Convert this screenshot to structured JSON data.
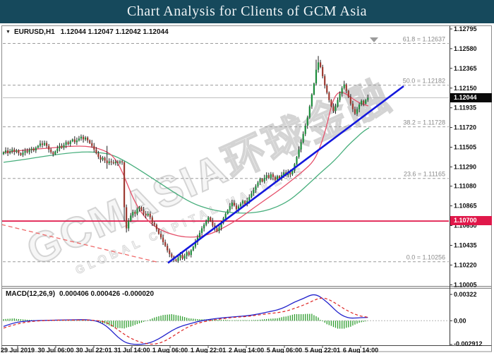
{
  "ui": {
    "title_bar": {
      "text": "Chart Analysis for Clients of GCM Asia",
      "bg_color": "#16495c"
    },
    "symbol_header": {
      "dropdown_icon": "▼",
      "symbol": "EURUSD,H1",
      "ohlc": "1.12044 1.12047 1.12042 1.12044"
    },
    "macd_label": {
      "name": "MACD(12,26,9)",
      "values": "0.000406 0.000426 -0.000020"
    },
    "badges": {
      "current_price": "1.12044",
      "current_bg": "#0a0a0a",
      "alert_price": "1.10700",
      "alert_bg": "#e0184a"
    },
    "watermark": {
      "main": "GCMASIA环球金融",
      "sub": "GLOBAL CAPITAL MARKETS"
    }
  },
  "chart_data": {
    "type": "candlestick",
    "symbol": "EURUSD",
    "timeframe": "H1",
    "current_ohlc": {
      "open": 1.12044,
      "high": 1.12047,
      "low": 1.12042,
      "close": 1.12044
    },
    "ylim": [
      1.10005,
      1.12795
    ],
    "y_ticks": [
      1.12795,
      1.1258,
      1.12365,
      1.1215,
      1.11935,
      1.1172,
      1.11505,
      1.1129,
      1.1108,
      1.10865,
      1.1065,
      1.10435,
      1.1022,
      1.10005
    ],
    "x_tick_labels": [
      "29 Jul 2019",
      "30 Jul 06:00",
      "30 Jul 22:01",
      "31 Jul 14:00",
      "1 Aug 06:00",
      "1 Aug 22:01",
      "2 Aug 14:00",
      "5 Aug 06:00",
      "5 Aug 22:01",
      "6 Aug 14:00"
    ],
    "current_price": 1.12044,
    "hline_red": 1.107,
    "fib_levels": [
      {
        "ratio": "61.8",
        "price": 1.12637,
        "label": "61.8 = 1.12637"
      },
      {
        "ratio": "50.0",
        "price": 1.12182,
        "label": "50.0 = 1.12182"
      },
      {
        "ratio": "38.2",
        "price": 1.11728,
        "label": "38.2 = 1.11728"
      },
      {
        "ratio": "23.6",
        "price": 1.11165,
        "label": "23.6 = 1.11165"
      },
      {
        "ratio": "0.0",
        "price": 1.10256,
        "label": "0.0 = 1.10256"
      }
    ],
    "trendline_blue": {
      "x1": 238,
      "price1": 1.10243,
      "x2": 572,
      "price2": 1.12171
    },
    "dashed_red_line": {
      "x1": 2,
      "price1": 1.10662,
      "x2": 222,
      "price2": 1.10253
    },
    "first_open": 1.1143,
    "candles_close": [
      1.1145,
      1.1147,
      1.1144,
      1.1146,
      1.1148,
      1.11455,
      1.1147,
      1.1144,
      1.1142,
      1.11445,
      1.11465,
      1.1145,
      1.11475,
      1.1149,
      1.1147,
      1.115,
      1.1152,
      1.11545,
      1.1153,
      1.1155,
      1.1152,
      1.1148,
      1.1145,
      1.1143,
      1.1146,
      1.1149,
      1.1152,
      1.115,
      1.1153,
      1.1156,
      1.1154,
      1.1157,
      1.1159,
      1.1156,
      1.1158,
      1.116,
      1.1162,
      1.1159,
      1.1161,
      1.1158,
      1.1155,
      1.1152,
      1.1148,
      1.1144,
      1.114,
      1.1137,
      1.1139,
      1.1136,
      1.1133,
      1.1135,
      1.1134,
      1.1133,
      1.11345,
      1.11335,
      1.1135,
      1.1134,
      1.1085,
      1.1062,
      1.107,
      1.1076,
      1.108,
      1.1078,
      1.1083,
      1.1085,
      1.1082,
      1.1078,
      1.1076,
      1.1078,
      1.1074,
      1.1068,
      1.1066,
      1.1061,
      1.1056,
      1.1052,
      1.1047,
      1.1043,
      1.1038,
      1.1034,
      1.1031,
      1.1028,
      1.10265,
      1.103,
      1.1033,
      1.1029,
      1.1032,
      1.1036,
      1.1033,
      1.1038,
      1.1042,
      1.1047,
      1.1052,
      1.1057,
      1.1062,
      1.1066,
      1.107,
      1.1074,
      1.107,
      1.1065,
      1.1062,
      1.1059,
      1.1063,
      1.1068,
      1.1073,
      1.1078,
      1.1082,
      1.1086,
      1.109,
      1.1087,
      1.1083,
      1.1086,
      1.1089,
      1.1092,
      1.1088,
      1.1092,
      1.1096,
      1.11,
      1.1104,
      1.1108,
      1.1112,
      1.1116,
      1.1113,
      1.1117,
      1.112,
      1.1117,
      1.1121,
      1.1118,
      1.1115,
      1.1119,
      1.1116,
      1.112,
      1.1123,
      1.112,
      1.1124,
      1.1121,
      1.1125,
      1.1132,
      1.114,
      1.1148,
      1.1156,
      1.1165,
      1.1174,
      1.1183,
      1.1195,
      1.1208,
      1.122,
      1.1235,
      1.1243,
      1.1238,
      1.1228,
      1.1218,
      1.121,
      1.1202,
      1.1195,
      1.119,
      1.1195,
      1.1202,
      1.1209,
      1.1215,
      1.1219,
      1.1212,
      1.1205,
      1.1198,
      1.1192,
      1.1187,
      1.1192,
      1.1197,
      1.1201,
      1.1198,
      1.1202,
      1.12044
    ],
    "candle_overrides": {
      "48": {
        "h": 1.1152,
        "l": 1.1127
      },
      "56": {
        "h": 1.1135,
        "l": 1.107
      },
      "57": {
        "h": 1.1088,
        "l": 1.10575
      },
      "80": {
        "l": 1.10256
      },
      "145": {
        "h": 1.1246
      },
      "146": {
        "h": 1.125
      },
      "158": {
        "h": 1.1223
      }
    },
    "ma_fast_red": [
      [
        5,
        1.11448
      ],
      [
        40,
        1.11478
      ],
      [
        70,
        1.11494
      ],
      [
        100,
        1.11517
      ],
      [
        125,
        1.11517
      ],
      [
        145,
        1.11479
      ],
      [
        160,
        1.11417
      ],
      [
        172,
        1.11263
      ],
      [
        182,
        1.1107
      ],
      [
        192,
        1.10893
      ],
      [
        205,
        1.10739
      ],
      [
        220,
        1.10631
      ],
      [
        240,
        1.10562
      ],
      [
        260,
        1.10524
      ],
      [
        280,
        1.10524
      ],
      [
        300,
        1.10562
      ],
      [
        320,
        1.10639
      ],
      [
        340,
        1.10731
      ],
      [
        360,
        1.10847
      ],
      [
        380,
        1.10954
      ],
      [
        400,
        1.11062
      ],
      [
        415,
        1.11155
      ],
      [
        430,
        1.11247
      ],
      [
        445,
        1.11355
      ],
      [
        455,
        1.11532
      ],
      [
        463,
        1.1174
      ],
      [
        468,
        1.11909
      ],
      [
        473,
        1.12033
      ],
      [
        478,
        1.12094
      ],
      [
        484,
        1.1211
      ],
      [
        492,
        1.12079
      ],
      [
        500,
        1.12033
      ],
      [
        508,
        1.11994
      ],
      [
        515,
        1.11971
      ],
      [
        522,
        1.11956
      ]
    ],
    "ma_slow_green": [
      [
        5,
        1.1134
      ],
      [
        35,
        1.11371
      ],
      [
        65,
        1.11409
      ],
      [
        95,
        1.1144
      ],
      [
        120,
        1.11455
      ],
      [
        140,
        1.11448
      ],
      [
        158,
        1.11425
      ],
      [
        175,
        1.11363
      ],
      [
        195,
        1.11271
      ],
      [
        215,
        1.11171
      ],
      [
        235,
        1.11071
      ],
      [
        255,
        1.10971
      ],
      [
        275,
        1.10886
      ],
      [
        295,
        1.10832
      ],
      [
        315,
        1.10801
      ],
      [
        335,
        1.10786
      ],
      [
        355,
        1.10786
      ],
      [
        375,
        1.10809
      ],
      [
        393,
        1.10855
      ],
      [
        410,
        1.10924
      ],
      [
        425,
        1.11017
      ],
      [
        440,
        1.11124
      ],
      [
        455,
        1.11232
      ],
      [
        468,
        1.11317
      ],
      [
        480,
        1.11409
      ],
      [
        492,
        1.11517
      ],
      [
        505,
        1.11609
      ],
      [
        515,
        1.11679
      ],
      [
        523,
        1.11717
      ]
    ],
    "macd": {
      "params": "12,26,9",
      "current": {
        "macd": 0.000406,
        "signal": 0.000426,
        "histogram": -2e-05
      },
      "ylim": [
        -0.002912,
        0.00322
      ],
      "axis": [
        {
          "label": "0.00322",
          "v": 0.00322
        },
        {
          "label": "0.00",
          "v": 0.0
        },
        {
          "label": "-0.002912",
          "v": -0.002912
        }
      ],
      "line": [
        [
          0,
          -0.0007
        ],
        [
          5,
          -0.0002
        ],
        [
          12,
          0.0
        ],
        [
          20,
          5e-05
        ],
        [
          30,
          0.0001
        ],
        [
          38,
          0.00015
        ],
        [
          43,
          0.0
        ],
        [
          47,
          -0.0005
        ],
        [
          50,
          -0.0012
        ],
        [
          53,
          -0.002
        ],
        [
          56,
          -0.0026
        ],
        [
          59,
          -0.00285
        ],
        [
          62,
          -0.002912
        ],
        [
          66,
          -0.00285
        ],
        [
          70,
          -0.0025
        ],
        [
          74,
          -0.0019
        ],
        [
          78,
          -0.0012
        ],
        [
          82,
          -0.0007
        ],
        [
          86,
          -0.0004
        ],
        [
          90,
          -0.0001
        ],
        [
          94,
          0.0001
        ],
        [
          98,
          0.00025
        ],
        [
          103,
          0.0004
        ],
        [
          108,
          0.0005
        ],
        [
          113,
          0.0006
        ],
        [
          118,
          0.0008
        ],
        [
          123,
          0.0011
        ],
        [
          127,
          0.0013
        ],
        [
          131,
          0.0017
        ],
        [
          135,
          0.0023
        ],
        [
          139,
          0.0027
        ],
        [
          143,
          0.00322
        ],
        [
          146,
          0.0031
        ],
        [
          149,
          0.0025
        ],
        [
          152,
          0.0018
        ],
        [
          155,
          0.001
        ],
        [
          158,
          0.0005
        ],
        [
          161,
          0.0003
        ],
        [
          164,
          0.00035
        ],
        [
          169,
          0.000406
        ]
      ],
      "signal": [
        [
          0,
          -0.0009
        ],
        [
          6,
          -0.0004
        ],
        [
          12,
          -0.0001
        ],
        [
          20,
          5e-05
        ],
        [
          30,
          8e-05
        ],
        [
          40,
          0.0001
        ],
        [
          46,
          -5e-05
        ],
        [
          50,
          -0.0005
        ],
        [
          54,
          -0.0013
        ],
        [
          58,
          -0.002
        ],
        [
          62,
          -0.0025
        ],
        [
          66,
          -0.0028
        ],
        [
          70,
          -0.0029
        ],
        [
          74,
          -0.0026
        ],
        [
          78,
          -0.002
        ],
        [
          82,
          -0.0013
        ],
        [
          86,
          -0.0007
        ],
        [
          90,
          -0.0003
        ],
        [
          95,
          0.0
        ],
        [
          100,
          0.0002
        ],
        [
          106,
          0.0004
        ],
        [
          112,
          0.0005
        ],
        [
          118,
          0.0007
        ],
        [
          124,
          0.0009
        ],
        [
          130,
          0.0011
        ],
        [
          135,
          0.0015
        ],
        [
          140,
          0.002
        ],
        [
          144,
          0.0025
        ],
        [
          147,
          0.0028
        ],
        [
          150,
          0.0027
        ],
        [
          153,
          0.0023
        ],
        [
          156,
          0.0018
        ],
        [
          159,
          0.0013
        ],
        [
          162,
          0.0009
        ],
        [
          165,
          0.0006
        ],
        [
          169,
          0.000426
        ]
      ]
    },
    "colors": {
      "bull": "#1d8c3c",
      "bear": "#9c3a31",
      "wick": "#1f1f1f",
      "ma_fast": "#e5506a",
      "ma_slow": "#47ae7c",
      "trend_blue": "#1418dd",
      "hline": "#e0184a",
      "dashed_red": "#ef6a6a",
      "fib": "#9b9b9b",
      "current_line": "#a8a8a8",
      "macd_line": "#2222cc",
      "macd_signal": "#dd2222",
      "macd_hist": "#2f9e2f"
    }
  }
}
